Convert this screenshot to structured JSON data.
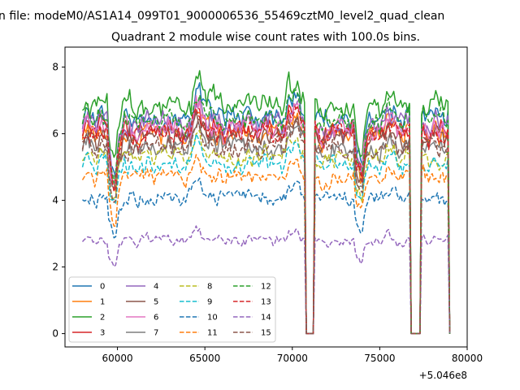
{
  "chart_data": {
    "type": "line",
    "suptitle": "n file: modeM0/AS1A14_099T01_9000006536_55469cztM0_level2_quad_clean",
    "title": "Quadrant 2 module wise count rates with 100.0s bins.",
    "xlabel": "",
    "ylabel": "",
    "x_offset_label": "+5.046e8",
    "x_range": [
      57000,
      80000
    ],
    "xlim": [
      57000,
      80000
    ],
    "ylim": [
      -0.4,
      8.6
    ],
    "x_ticks": [
      60000,
      65000,
      70000,
      75000,
      80000
    ],
    "x_tick_labels": [
      "60000",
      "65000",
      "70000",
      "75000",
      "80000"
    ],
    "y_ticks": [
      0,
      2,
      4,
      6,
      8
    ],
    "y_tick_labels": [
      "0",
      "2",
      "4",
      "6",
      "8"
    ],
    "grid": false,
    "legend_position": "lower-left",
    "x_start": 58000,
    "x_end": 79000,
    "bin_width": 100,
    "gaps": [
      [
        70800,
        71200
      ],
      [
        76800,
        77300
      ],
      [
        78950,
        79000
      ]
    ],
    "series": [
      {
        "name": "0",
        "color": "#1f77b4",
        "style": "solid",
        "mean": 6.5
      },
      {
        "name": "1",
        "color": "#ff7f0e",
        "style": "solid",
        "mean": 6.0
      },
      {
        "name": "2",
        "color": "#2ca02c",
        "style": "solid",
        "mean": 6.9
      },
      {
        "name": "3",
        "color": "#d62728",
        "style": "solid",
        "mean": 6.1
      },
      {
        "name": "4",
        "color": "#9467bd",
        "style": "solid",
        "mean": 6.3
      },
      {
        "name": "5",
        "color": "#8c564b",
        "style": "solid",
        "mean": 5.9
      },
      {
        "name": "6",
        "color": "#e377c2",
        "style": "solid",
        "mean": 6.2
      },
      {
        "name": "7",
        "color": "#7f7f7f",
        "style": "solid",
        "mean": 5.6
      },
      {
        "name": "8",
        "color": "#bcbd22",
        "style": "dashed",
        "mean": 5.3
      },
      {
        "name": "9",
        "color": "#17becf",
        "style": "dashed",
        "mean": 5.1
      },
      {
        "name": "10",
        "color": "#1f77b4",
        "style": "dashed",
        "mean": 4.1
      },
      {
        "name": "11",
        "color": "#ff7f0e",
        "style": "dashed",
        "mean": 4.7
      },
      {
        "name": "12",
        "color": "#2ca02c",
        "style": "dashed",
        "mean": 6.4
      },
      {
        "name": "13",
        "color": "#d62728",
        "style": "dashed",
        "mean": 6.0
      },
      {
        "name": "14",
        "color": "#9467bd",
        "style": "dashed",
        "mean": 2.8
      },
      {
        "name": "15",
        "color": "#8c564b",
        "style": "dashed",
        "mean": 5.6
      }
    ]
  }
}
